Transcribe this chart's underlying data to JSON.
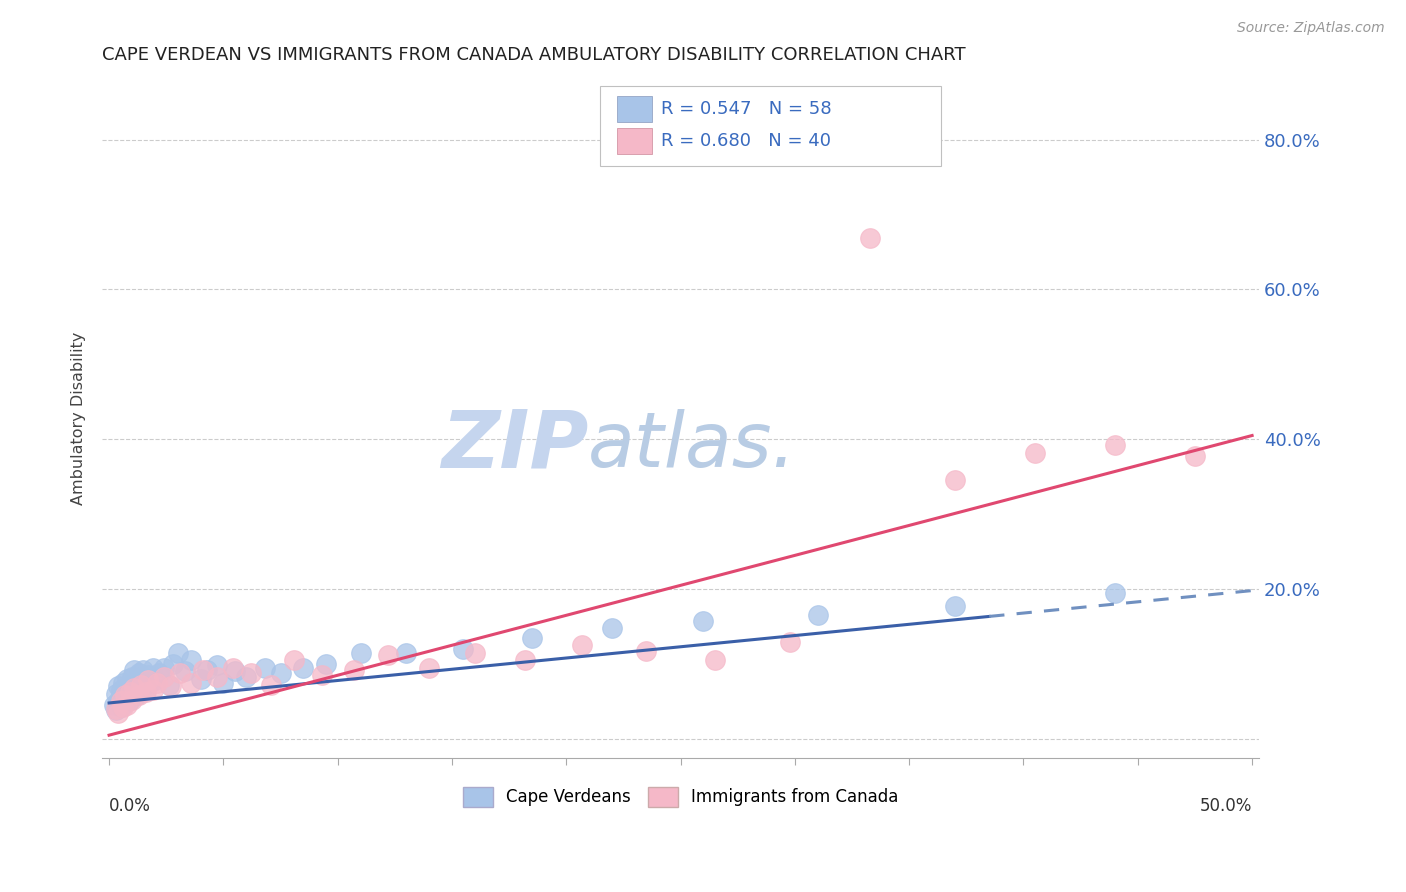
{
  "title": "CAPE VERDEAN VS IMMIGRANTS FROM CANADA AMBULATORY DISABILITY CORRELATION CHART",
  "source": "Source: ZipAtlas.com",
  "ylabel": "Ambulatory Disability",
  "ytick_values": [
    0.0,
    0.2,
    0.4,
    0.6,
    0.8
  ],
  "xlim": [
    0.0,
    0.5
  ],
  "ylim": [
    -0.025,
    0.88
  ],
  "cape_verdean_R": 0.547,
  "cape_verdean_N": 58,
  "immigrants_canada_R": 0.68,
  "immigrants_canada_N": 40,
  "blue_color": "#a8c4e8",
  "pink_color": "#f5b8c8",
  "blue_line_color": "#3a5fa8",
  "pink_line_color": "#e04870",
  "blue_dashed_color": "#7090c0",
  "legend_text_color": "#3a6bbf",
  "watermark_zip_color": "#c8d8f0",
  "watermark_atlas_color": "#b8c8e8",
  "background_color": "#ffffff",
  "grid_color": "#cccccc",
  "title_color": "#222222",
  "blue_line_x_solid_end": 0.385,
  "blue_line_x_dashed_start": 0.385,
  "cape_verdean_x": [
    0.002,
    0.003,
    0.003,
    0.004,
    0.004,
    0.005,
    0.005,
    0.006,
    0.006,
    0.007,
    0.007,
    0.008,
    0.008,
    0.009,
    0.009,
    0.01,
    0.01,
    0.011,
    0.011,
    0.012,
    0.012,
    0.013,
    0.013,
    0.014,
    0.014,
    0.015,
    0.015,
    0.016,
    0.017,
    0.018,
    0.019,
    0.02,
    0.022,
    0.024,
    0.026,
    0.028,
    0.03,
    0.033,
    0.036,
    0.04,
    0.043,
    0.047,
    0.05,
    0.055,
    0.06,
    0.068,
    0.075,
    0.085,
    0.095,
    0.11,
    0.13,
    0.155,
    0.185,
    0.22,
    0.26,
    0.31,
    0.37,
    0.44
  ],
  "cape_verdean_y": [
    0.045,
    0.038,
    0.06,
    0.05,
    0.07,
    0.042,
    0.065,
    0.055,
    0.075,
    0.048,
    0.068,
    0.058,
    0.08,
    0.052,
    0.072,
    0.062,
    0.082,
    0.072,
    0.092,
    0.058,
    0.078,
    0.068,
    0.088,
    0.062,
    0.082,
    0.072,
    0.092,
    0.065,
    0.085,
    0.075,
    0.095,
    0.078,
    0.088,
    0.095,
    0.072,
    0.1,
    0.115,
    0.09,
    0.105,
    0.08,
    0.092,
    0.098,
    0.075,
    0.09,
    0.082,
    0.095,
    0.088,
    0.095,
    0.1,
    0.115,
    0.115,
    0.12,
    0.135,
    0.148,
    0.158,
    0.165,
    0.178,
    0.195
  ],
  "immigrants_canada_x": [
    0.003,
    0.004,
    0.005,
    0.006,
    0.007,
    0.008,
    0.009,
    0.01,
    0.011,
    0.013,
    0.014,
    0.016,
    0.017,
    0.019,
    0.021,
    0.024,
    0.027,
    0.031,
    0.036,
    0.041,
    0.047,
    0.054,
    0.062,
    0.071,
    0.081,
    0.093,
    0.107,
    0.122,
    0.14,
    0.16,
    0.182,
    0.207,
    0.235,
    0.265,
    0.298,
    0.333,
    0.37,
    0.405,
    0.44,
    0.475
  ],
  "immigrants_canada_y": [
    0.04,
    0.035,
    0.05,
    0.042,
    0.058,
    0.045,
    0.062,
    0.052,
    0.068,
    0.058,
    0.072,
    0.062,
    0.078,
    0.065,
    0.075,
    0.082,
    0.07,
    0.088,
    0.075,
    0.092,
    0.082,
    0.095,
    0.088,
    0.072,
    0.105,
    0.085,
    0.092,
    0.112,
    0.095,
    0.115,
    0.105,
    0.125,
    0.118,
    0.105,
    0.13,
    0.668,
    0.345,
    0.382,
    0.392,
    0.378
  ]
}
